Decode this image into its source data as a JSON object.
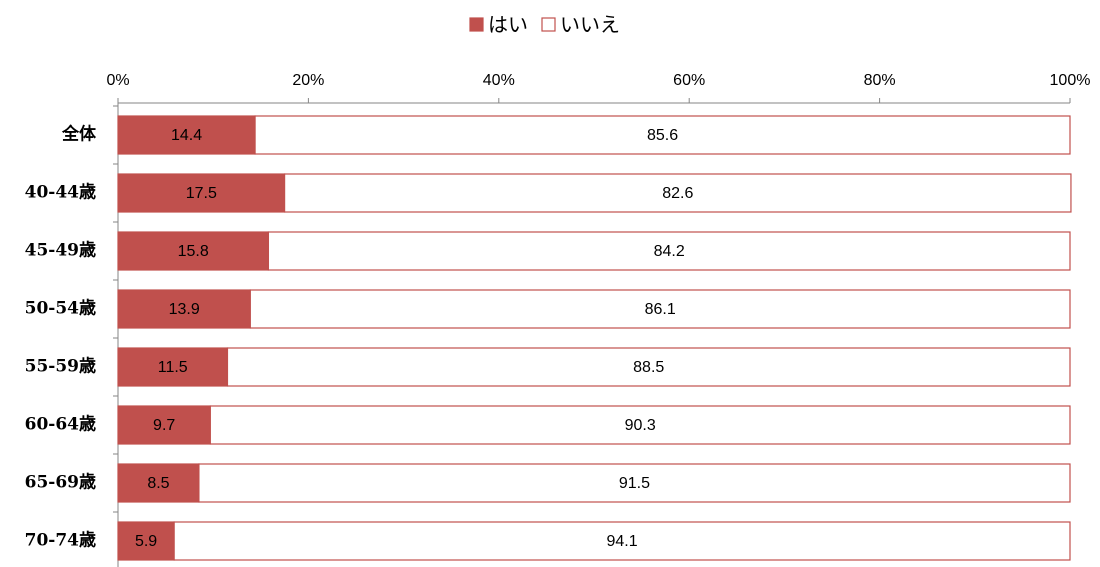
{
  "chart_data": {
    "type": "bar",
    "orientation": "horizontal",
    "stacked": true,
    "categories": [
      "全体",
      "40-44歳",
      "45-49歳",
      "50-54歳",
      "55-59歳",
      "60-64歳",
      "65-69歳",
      "70-74歳"
    ],
    "series": [
      {
        "name": "はい",
        "color": "#c0504d",
        "values": [
          14.4,
          17.5,
          15.8,
          13.9,
          11.5,
          9.7,
          8.5,
          5.9
        ]
      },
      {
        "name": "いいえ",
        "color": "#ffffff",
        "values": [
          85.6,
          82.6,
          84.2,
          86.1,
          88.5,
          90.3,
          91.5,
          94.1
        ]
      }
    ],
    "border_color": "#c0504d",
    "xlim": [
      0,
      100
    ],
    "xticks": [
      {
        "value": 0,
        "label": "0%"
      },
      {
        "value": 20,
        "label": "20%"
      },
      {
        "value": 40,
        "label": "40%"
      },
      {
        "value": 60,
        "label": "60%"
      },
      {
        "value": 80,
        "label": "80%"
      },
      {
        "value": 100,
        "label": "100%"
      }
    ],
    "legend": "top"
  }
}
